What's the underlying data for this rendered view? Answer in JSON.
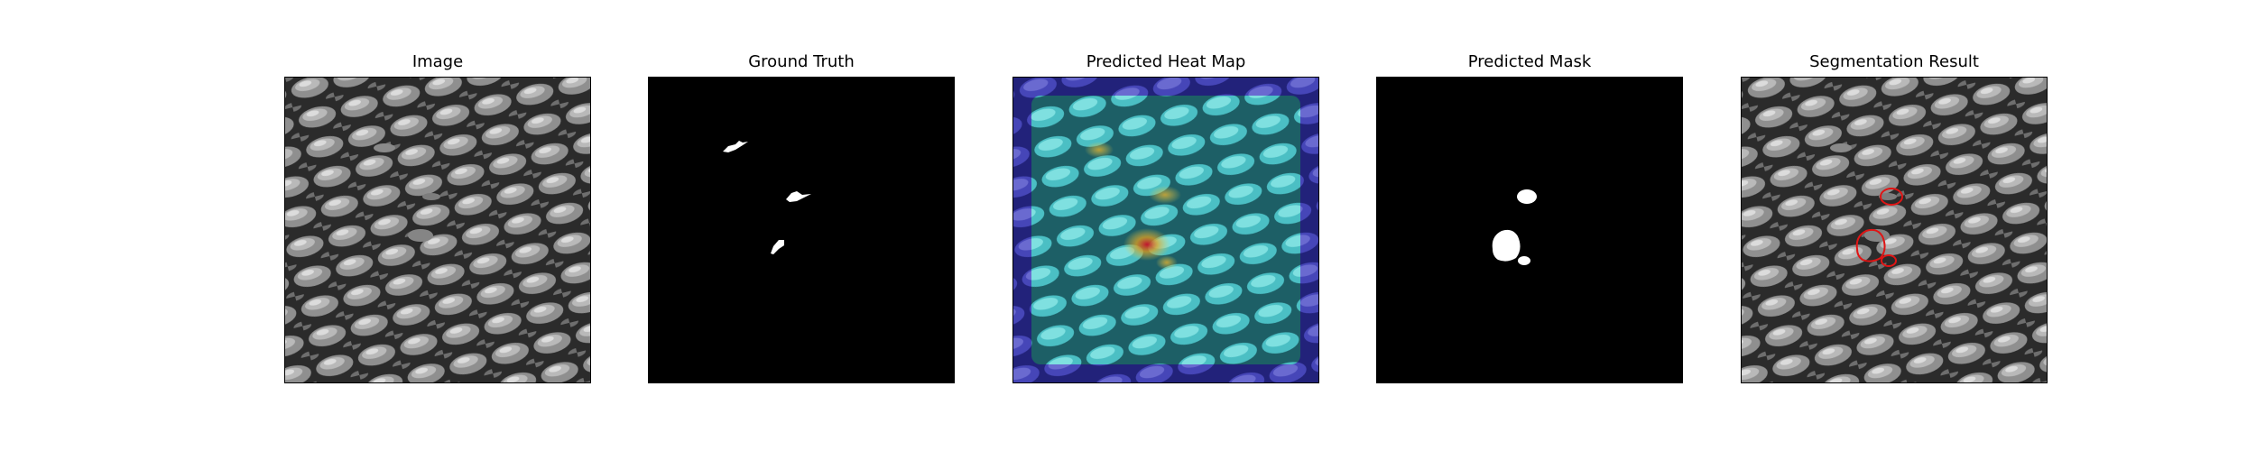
{
  "figure": {
    "panels": [
      {
        "title": "Image",
        "kind": "source-texture"
      },
      {
        "title": "Ground Truth",
        "kind": "binary-mask"
      },
      {
        "title": "Predicted Heat Map",
        "kind": "heatmap-overlay"
      },
      {
        "title": "Predicted Mask",
        "kind": "binary-mask"
      },
      {
        "title": "Segmentation Result",
        "kind": "contour-overlay"
      }
    ],
    "colors": {
      "background": "#ffffff",
      "mask_background": "#000000",
      "mask_foreground": "#ffffff",
      "heatmap_low": "#2e2ea8",
      "heatmap_mid": "#48c8c8",
      "heatmap_high": "#d81c1c",
      "contour": "#e01414"
    }
  }
}
